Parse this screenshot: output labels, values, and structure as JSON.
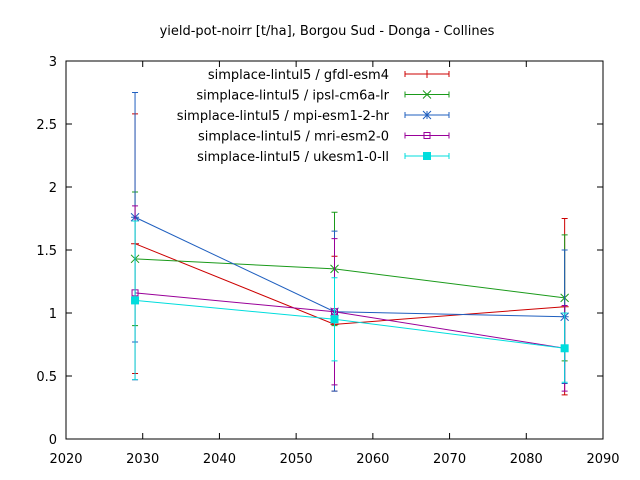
{
  "chart_data": {
    "type": "line",
    "title": "yield-pot-noirr [t/ha], Borgou Sud - Donga - Collines",
    "xlabel": "",
    "ylabel": "",
    "xlim": [
      2020,
      2090
    ],
    "ylim": [
      0,
      3
    ],
    "xticks": [
      2020,
      2030,
      2040,
      2050,
      2060,
      2070,
      2080,
      2090
    ],
    "xtick_labels": [
      "2020",
      "2030",
      "2040",
      "2050",
      "2060",
      "2070",
      "2080",
      "2090"
    ],
    "yticks": [
      0,
      0.5,
      1,
      1.5,
      2,
      2.5,
      3
    ],
    "ytick_labels": [
      "0",
      "0.5",
      "1",
      "1.5",
      "2",
      "2.5",
      "3"
    ],
    "grid": false,
    "legend_position": "top-right",
    "x": [
      2029,
      2055,
      2085
    ],
    "series": [
      {
        "name": "simplace-lintul5 / gfdl-esm4",
        "color": "#cc0000",
        "marker": "plus",
        "values": [
          1.55,
          0.91,
          1.05
        ],
        "err_low": [
          0.52,
          0.38,
          0.35
        ],
        "err_high": [
          2.58,
          1.45,
          1.75
        ]
      },
      {
        "name": "simplace-lintul5 / ipsl-cm6a-lr",
        "color": "#1a9a1a",
        "marker": "cross",
        "values": [
          1.43,
          1.35,
          1.12
        ],
        "err_low": [
          0.9,
          0.9,
          0.62
        ],
        "err_high": [
          1.96,
          1.8,
          1.62
        ]
      },
      {
        "name": "simplace-lintul5 / mpi-esm1-2-hr",
        "color": "#1f5fbf",
        "marker": "star",
        "values": [
          1.76,
          1.01,
          0.97
        ],
        "err_low": [
          0.77,
          0.38,
          0.44
        ],
        "err_high": [
          2.75,
          1.65,
          1.5
        ]
      },
      {
        "name": "simplace-lintul5 / mri-esm2-0",
        "color": "#990099",
        "marker": "square-open",
        "values": [
          1.16,
          1.01,
          0.72
        ],
        "err_low": [
          0.47,
          0.43,
          0.38
        ],
        "err_high": [
          1.85,
          1.59,
          1.06
        ]
      },
      {
        "name": "simplace-lintul5 / ukesm1-0-ll",
        "color": "#00dddd",
        "marker": "square-filled",
        "values": [
          1.1,
          0.95,
          0.72
        ],
        "err_low": [
          0.47,
          0.62,
          0.45
        ],
        "err_high": [
          1.73,
          1.28,
          1.0
        ]
      }
    ]
  }
}
